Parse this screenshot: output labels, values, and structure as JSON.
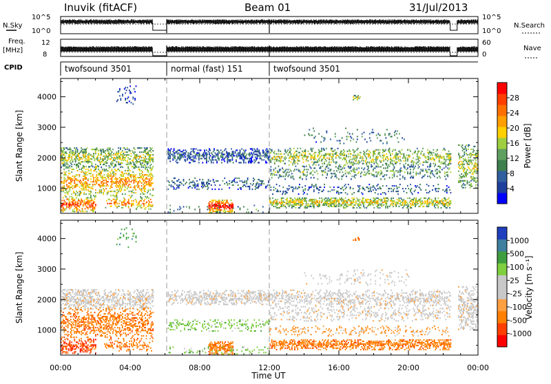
{
  "header": {
    "site": "Inuvik (fitACF)",
    "beam": "Beam 01",
    "date": "31/Jul/2013"
  },
  "small_panels": {
    "nsky_label": "N.Sky",
    "nsearch_label": "N.Search",
    "freq_label": "Freq.",
    "freq_unit": "[MHz]",
    "nave_label": "Nave",
    "cpid_label": "CPID",
    "left_ticks_top": [
      "10^5",
      "10^0"
    ],
    "right_ticks_top": [
      "10^5",
      "10^0"
    ],
    "left_ticks_bottom": [
      "12",
      "8"
    ],
    "right_ticks_bottom": [
      "60",
      "0"
    ]
  },
  "cpid_segments": [
    {
      "start": 0.0,
      "end": 6.1,
      "label": "twofsound 3501"
    },
    {
      "start": 6.1,
      "end": 12.0,
      "label": "normal (fast) 151"
    },
    {
      "start": 12.0,
      "end": 24.0,
      "label": "twofsound 3501"
    }
  ],
  "colors": {
    "power_scale": [
      "#0000ff",
      "#1f3f9f",
      "#2f5f9f",
      "#3f7f4f",
      "#5f9f5f",
      "#9fcf3f",
      "#ffcf00",
      "#ff9f00",
      "#ff6f00",
      "#ff3f00",
      "#ff0000"
    ],
    "velocity_scale": [
      "#ff0000",
      "#ff3f00",
      "#ff7f00",
      "#ffa040",
      "#c8c8c8",
      "#c8c8c8",
      "#7fcf3f",
      "#3f9f3f",
      "#3f7f9f",
      "#1f3fbf"
    ]
  },
  "chart_data": [
    {
      "type": "heatmap",
      "ylabel": "Slant Range [km]",
      "xlabel": "Time UT",
      "x_ticks": [
        "00:00",
        "04:00",
        "08:00",
        "12:00",
        "16:00",
        "20:00",
        "00:00"
      ],
      "xlim": [
        0,
        24
      ],
      "y_ticks": [
        1000,
        2000,
        3000,
        4000
      ],
      "ylim": [
        180,
        4600
      ],
      "colorbar_label": "Power [dB]",
      "colorbar_ticks": [
        4,
        8,
        12,
        16,
        20,
        24,
        28
      ],
      "scan_gaps": [
        [
          5.3,
          6.1
        ],
        [
          22.4,
          22.8
        ]
      ],
      "mode_boundaries": [
        6.1,
        12.0
      ]
    },
    {
      "type": "heatmap",
      "ylabel": "Slant Range [km]",
      "xlabel": "Time UT",
      "x_ticks": [
        "00:00",
        "04:00",
        "08:00",
        "12:00",
        "16:00",
        "20:00",
        "00:00"
      ],
      "xlim": [
        0,
        24
      ],
      "y_ticks": [
        1000,
        2000,
        3000,
        4000
      ],
      "ylim": [
        180,
        4600
      ],
      "colorbar_label": "Velocity [m s⁻¹]",
      "colorbar_ticks": [
        -1000,
        -500,
        -100,
        -25,
        25,
        100,
        500,
        1000
      ],
      "scan_gaps": [
        [
          5.3,
          6.1
        ],
        [
          22.4,
          22.8
        ]
      ],
      "mode_boundaries": [
        6.1,
        12.0
      ]
    }
  ]
}
